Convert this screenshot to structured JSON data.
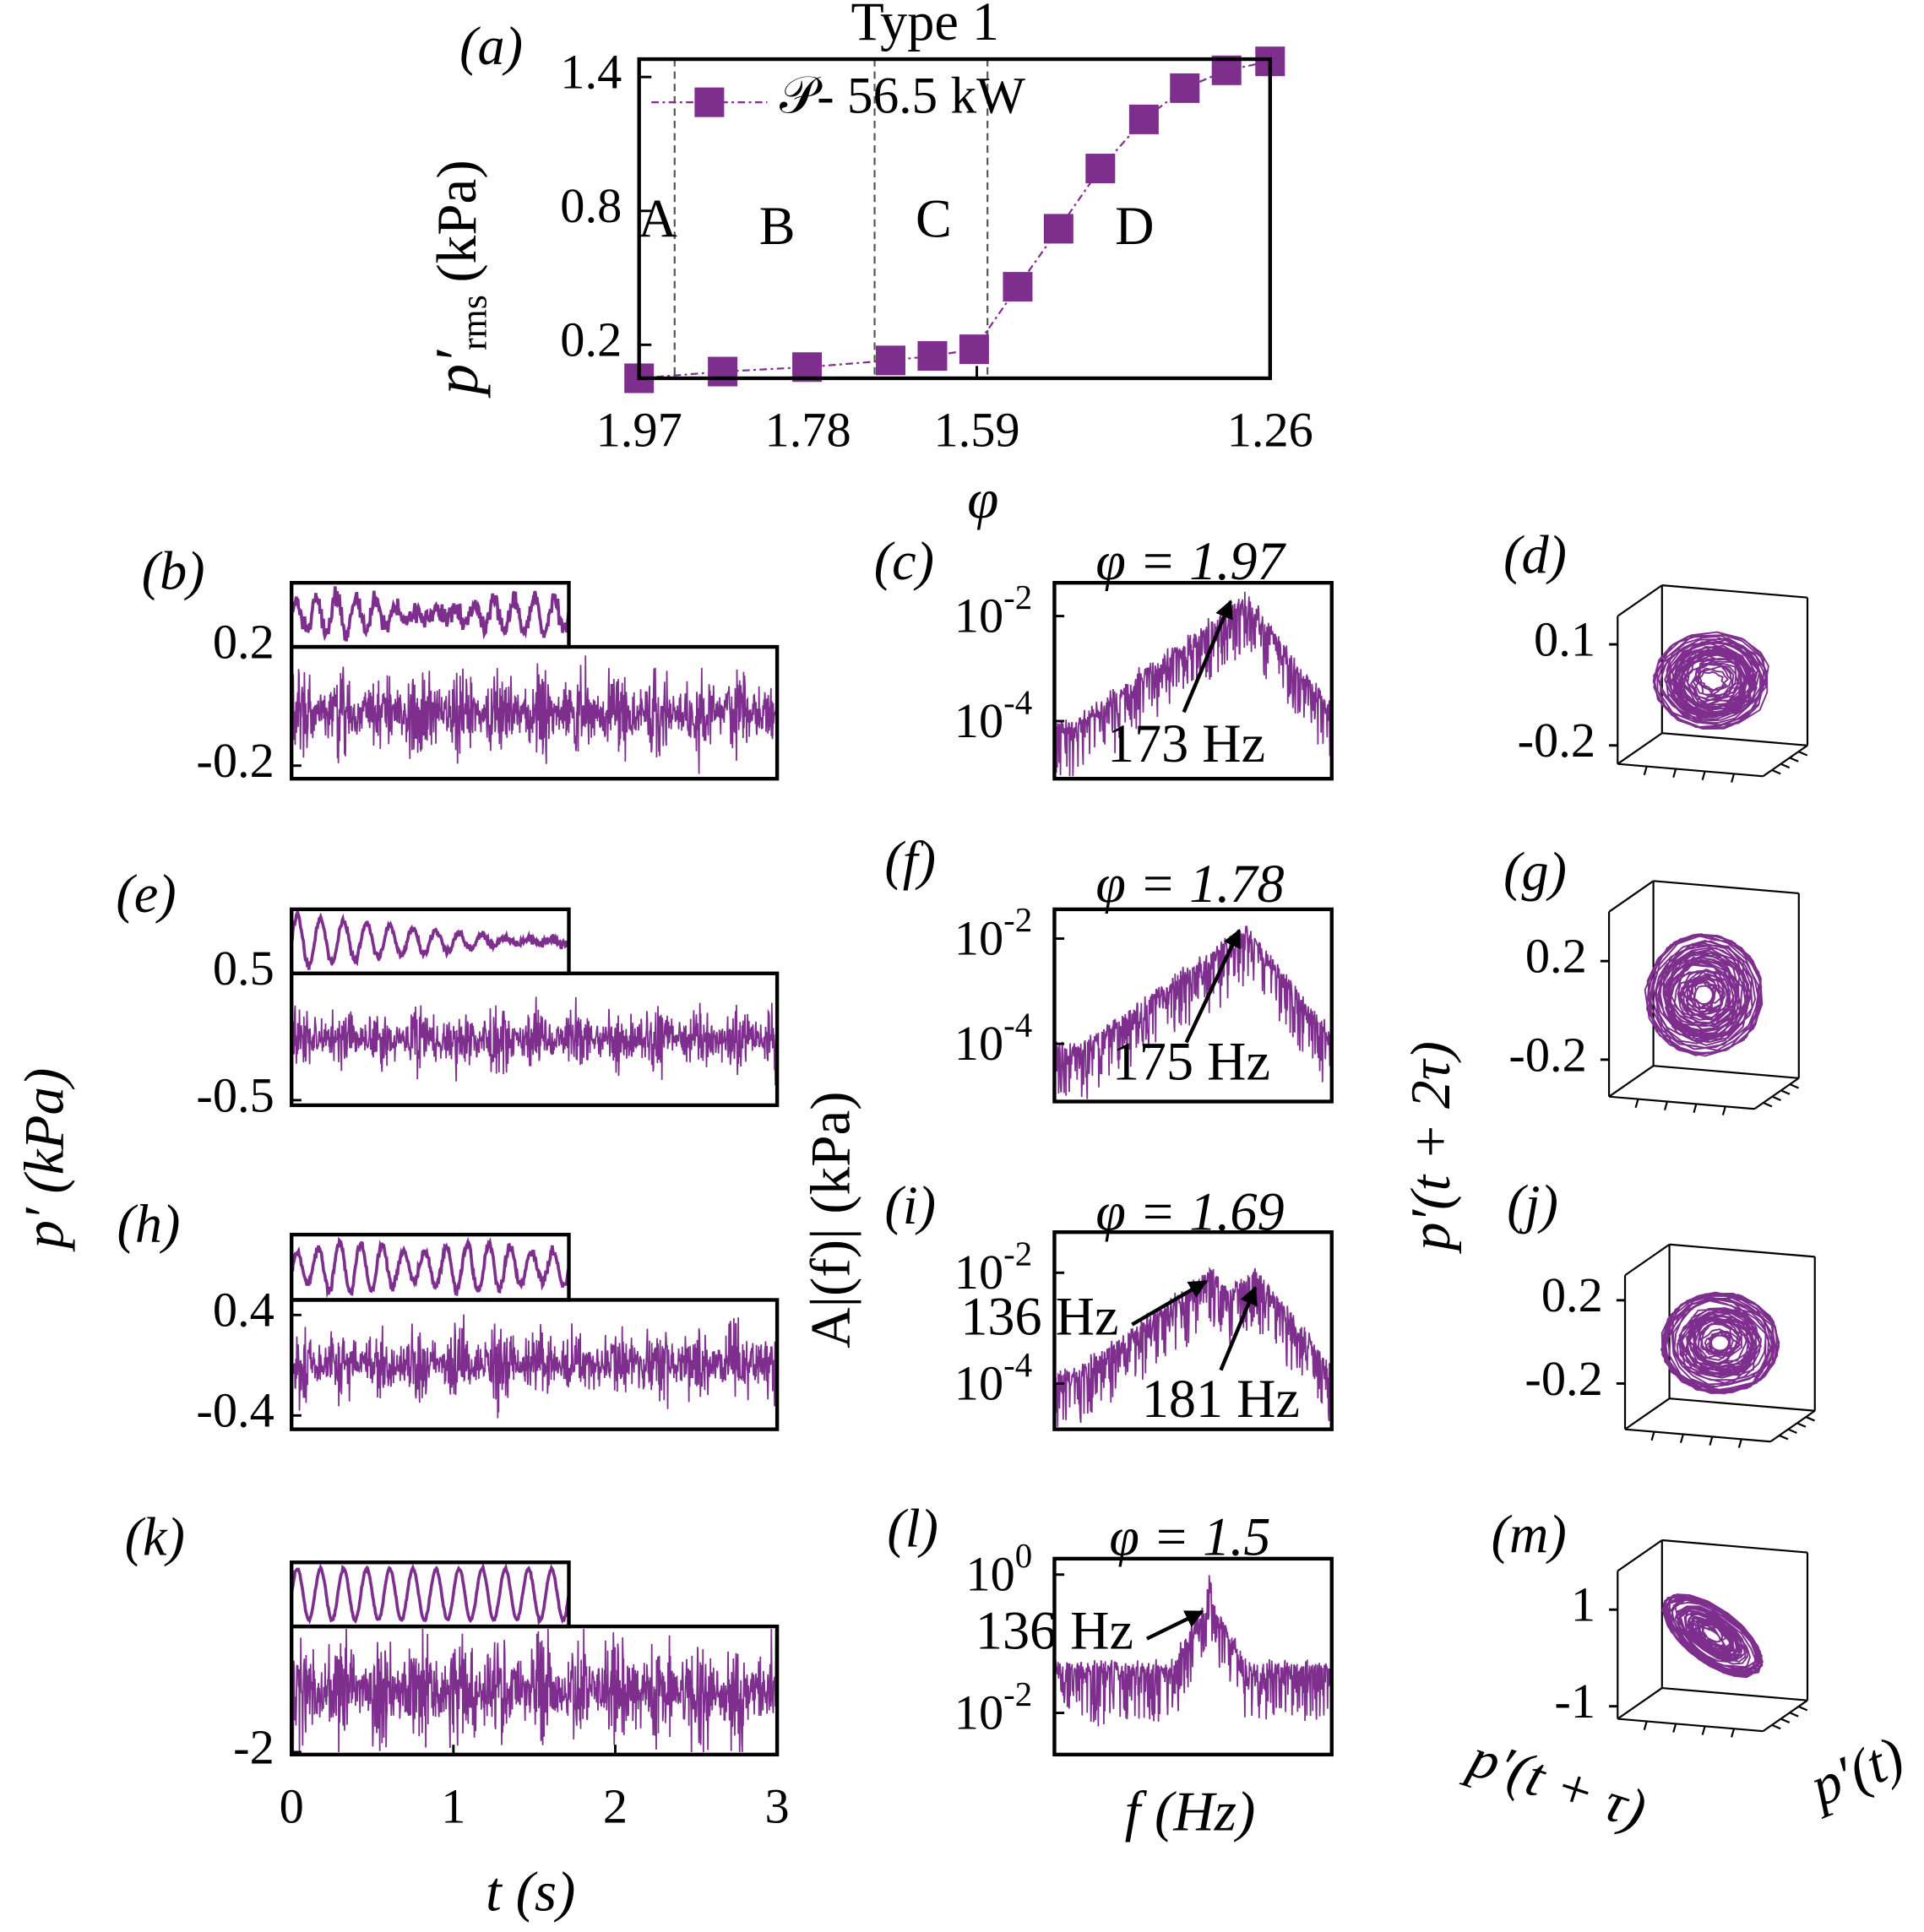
{
  "chart_data": [
    {
      "type": "line",
      "panel": "(a)",
      "title": "Type 1",
      "xlabel": "φ",
      "ylabel": {
        "symbol": "p′",
        "subscript": "rms",
        "unit": "(kPa)"
      },
      "x": [
        1.97,
        1.876,
        1.781,
        1.687,
        1.64,
        1.593,
        1.544,
        1.498,
        1.451,
        1.402,
        1.356,
        1.309,
        1.26
      ],
      "series": [
        {
          "name": "𝒫- 56.5 kW",
          "color": "#7e2f8e",
          "values": [
            0.05,
            0.08,
            0.1,
            0.13,
            0.15,
            0.18,
            0.46,
            0.72,
            0.99,
            1.21,
            1.35,
            1.43,
            1.47
          ]
        }
      ],
      "xlim": [
        1.97,
        1.26
      ],
      "ylim": [
        0.05,
        1.48
      ],
      "xticks": [
        1.97,
        1.78,
        1.59,
        1.26
      ],
      "yticks": [
        0.2,
        0.8,
        1.4
      ],
      "vlines": [
        1.93,
        1.705,
        1.578
      ],
      "regions": [
        "A",
        "B",
        "C",
        "D"
      ]
    },
    {
      "type": "timeseries",
      "panel": "(b)",
      "color": "#7e2f8e",
      "ylim": [
        -0.244,
        0.2
      ],
      "yticks": [
        0.2,
        -0.2
      ]
    },
    {
      "type": "spectrum",
      "panel": "(c)",
      "title": "φ = 1.97",
      "color": "#7e2f8e",
      "log_y": true,
      "ylim": [
        8e-06,
        0.043
      ],
      "yticks": [
        {
          "value": 0.01,
          "label": "10",
          "exponent": -2
        },
        {
          "value": 0.0001,
          "label": "10",
          "exponent": -4
        }
      ],
      "annotations": [
        "173 Hz"
      ]
    },
    {
      "type": "portrait",
      "panel": "(d)",
      "color": "#7e2f8e",
      "ylim": [
        -0.255,
        0.184
      ],
      "yticks": [
        0.1,
        -0.2
      ]
    },
    {
      "type": "timeseries",
      "panel": "(e)",
      "color": "#7e2f8e",
      "ylim": [
        -0.54,
        0.5
      ],
      "yticks": [
        0.5,
        -0.5
      ]
    },
    {
      "type": "spectrum",
      "panel": "(f)",
      "title": "φ = 1.78",
      "color": "#7e2f8e",
      "log_y": true,
      "ylim": [
        8e-06,
        0.036
      ],
      "yticks": [
        {
          "value": 0.01,
          "label": "10",
          "exponent": -2
        },
        {
          "value": 0.0001,
          "label": "10",
          "exponent": -4
        }
      ],
      "annotations": [
        "175 Hz"
      ]
    },
    {
      "type": "portrait",
      "panel": "(g)",
      "color": "#7e2f8e",
      "ylim": [
        -0.35,
        0.4
      ],
      "yticks": [
        0.2,
        -0.2
      ]
    },
    {
      "type": "timeseries",
      "panel": "(h)",
      "color": "#7e2f8e",
      "ylim": [
        -0.51,
        0.52
      ],
      "yticks": [
        0.4,
        -0.4
      ]
    },
    {
      "type": "spectrum",
      "panel": "(i)",
      "title": "φ = 1.69",
      "color": "#7e2f8e",
      "log_y": true,
      "ylim": [
        1.5e-05,
        0.054
      ],
      "yticks": [
        {
          "value": 0.01,
          "label": "10",
          "exponent": -2
        },
        {
          "value": 0.0001,
          "label": "10",
          "exponent": -4
        }
      ],
      "annotations": [
        "136 Hz",
        "181 Hz"
      ]
    },
    {
      "type": "portrait",
      "panel": "(j)",
      "color": "#7e2f8e",
      "ylim": [
        -0.42,
        0.32
      ],
      "yticks": [
        0.2,
        -0.2
      ]
    },
    {
      "type": "timeseries",
      "panel": "(k)",
      "color": "#7e2f8e",
      "ylim": [
        -2.08,
        2.08
      ],
      "yticks": [
        -2
      ],
      "xlim": [
        0,
        3
      ],
      "xticks": [
        0,
        1,
        2,
        3
      ],
      "xlabel": "t (s)"
    },
    {
      "type": "spectrum",
      "panel": "(l)",
      "title": "φ = 1.5",
      "color": "#7e2f8e",
      "log_y": true,
      "ylim": [
        0.0025,
        1.7
      ],
      "yticks": [
        {
          "value": 1,
          "label": "10",
          "exponent": 0
        },
        {
          "value": 0.01,
          "label": "10",
          "exponent": -2
        }
      ],
      "annotations": [
        "136 Hz"
      ],
      "xlabel": "f (Hz)"
    },
    {
      "type": "portrait",
      "panel": "(m)",
      "color": "#7e2f8e",
      "ylim": [
        -1.26,
        1.8
      ],
      "yticks": [
        1,
        -1
      ],
      "xlabel": "p′(t + τ)",
      "zlabel": "p′(t)"
    }
  ],
  "figure_labels": {
    "timeseries_ylabel": "p′ (kPa)",
    "spectrum_ylabel": "A|(f)| (kPa)",
    "portrait_ylabel": "p′(t + 2τ)"
  }
}
